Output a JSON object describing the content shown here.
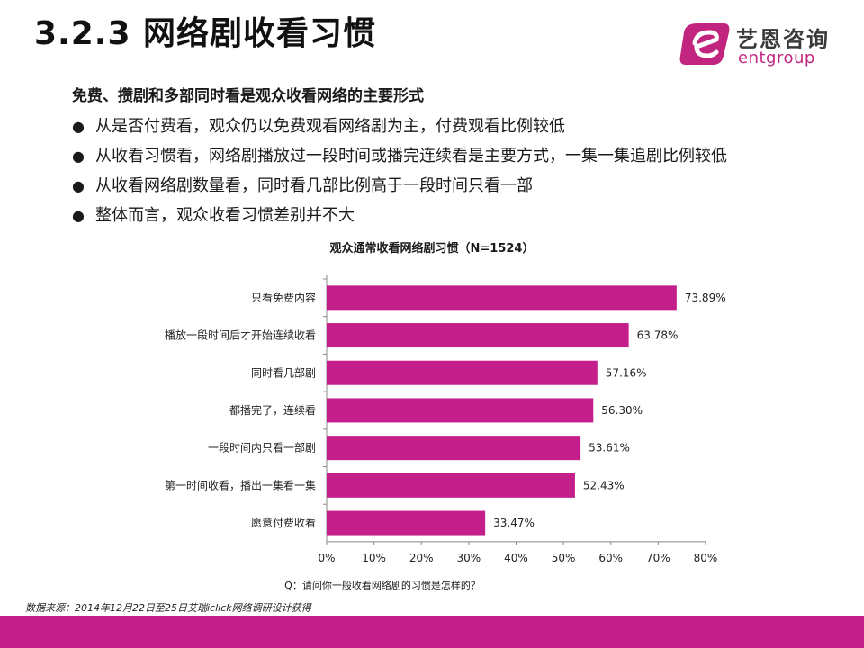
{
  "header": {
    "title": "3.2.3 网络剧收看习惯"
  },
  "logo": {
    "cn": "艺恩咨询",
    "en": "entgroup"
  },
  "summary": {
    "headline": "免费、攒剧和多部同时看是观众收看网络的主要形式",
    "bullet_glyph": "●",
    "bullets": [
      "从是否付费看，观众仍以免费观看网络剧为主，付费观看比例较低",
      "从收看习惯看，网络剧播放过一段时间或播完连续看是主要方式，一集一集追剧比例较低",
      "从收看网络剧数量看，同时看几部比例高于一段时间只看一部",
      "整体而言，观众收看习惯差别并不大"
    ]
  },
  "chart_data": {
    "type": "bar",
    "orientation": "horizontal",
    "title": "观众通常收看网络剧习惯（N=1524）",
    "categories": [
      "只看免费内容",
      "播放一段时间后才开始连续收看",
      "同时看几部剧",
      "都播完了，连续看",
      "一段时间内只看一部剧",
      "第一时间收看，播出一集看一集",
      "愿意付费收看"
    ],
    "values": [
      73.89,
      63.78,
      57.16,
      56.3,
      53.61,
      52.43,
      33.47
    ],
    "value_labels": [
      "73.89%",
      "63.78%",
      "57.16%",
      "56.30%",
      "53.61%",
      "52.43%",
      "33.47%"
    ],
    "xlim": [
      0,
      80
    ],
    "xticks": [
      0,
      10,
      20,
      30,
      40,
      50,
      60,
      70,
      80
    ],
    "xtick_labels": [
      "0%",
      "10%",
      "20%",
      "30%",
      "40%",
      "50%",
      "60%",
      "70%",
      "80%"
    ],
    "xlabel": "",
    "ylabel": "",
    "grid": false,
    "bar_color": "#c41e8a"
  },
  "footnote": {
    "question": "Q：请问你一般收看网络剧的习惯是怎样的？",
    "source": "数据来源：2014年12月22日至25日艾瑞iclick网络调研设计获得"
  },
  "colors": {
    "accent": "#c41e8a",
    "footer": "#c41e8a"
  }
}
